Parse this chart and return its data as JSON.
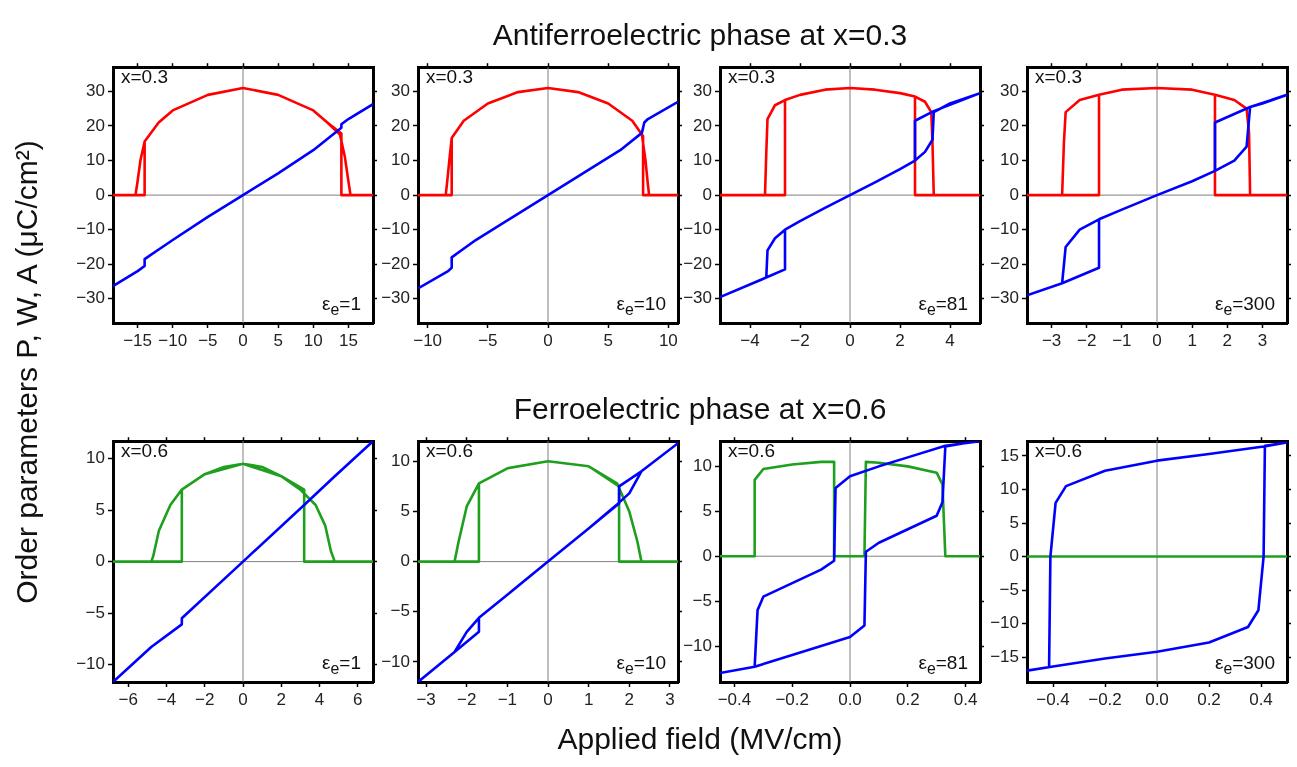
{
  "chart_data": [
    {
      "type": "line",
      "ylabel": "Order parameters P, W, A (μC/cm²)",
      "annotations": [
        "x=0.3",
        "ε$_{e}$=1"
      ],
      "xlim": [
        -18.5,
        18.5
      ],
      "ylim": [
        -37,
        37
      ],
      "xticks": [
        -15,
        -10,
        -5,
        0,
        5,
        10,
        15
      ],
      "yticks": [
        -30,
        -20,
        -10,
        0,
        10,
        20,
        30
      ],
      "ref_lines": [
        {
          "axis": "x",
          "value": 0,
          "color": "#808080"
        },
        {
          "axis": "y",
          "value": 0,
          "color": "#808080"
        }
      ],
      "series": [
        {
          "color": "#0000ff",
          "x": [
            -18.5,
            -15,
            -14,
            -14,
            -10,
            -5,
            0,
            5,
            10,
            14,
            14,
            15,
            18.5
          ],
          "values": [
            -26.3,
            -22,
            -20.5,
            -18.5,
            -13,
            -6.3,
            0,
            6.3,
            13,
            19.5,
            20.5,
            22,
            26.3
          ]
        },
        {
          "color": "#ff0000",
          "x": [
            -18.5,
            -14,
            -14,
            -12,
            -10,
            -5,
            0,
            5,
            10,
            12,
            13.8,
            14.5,
            15,
            15.3,
            18.5,
            14,
            14,
            12,
            10,
            5,
            0,
            -5,
            -10,
            -12,
            -14,
            -14.6,
            -15,
            -15.3
          ],
          "values": [
            0,
            0,
            15.5,
            21,
            24.5,
            29,
            31,
            29,
            24.5,
            21,
            17.5,
            11,
            4,
            0,
            0,
            0,
            17.8,
            21,
            24.5,
            29,
            31,
            29,
            24.5,
            21,
            15.5,
            10,
            4,
            0
          ]
        }
      ]
    },
    {
      "type": "line",
      "annotations": [
        "x=0.3",
        "ε$_{e}$=10"
      ],
      "xlim": [
        -10.8,
        10.8
      ],
      "ylim": [
        -37,
        37
      ],
      "xticks": [
        -10,
        -5,
        0,
        5,
        10
      ],
      "yticks": [
        -30,
        -20,
        -10,
        0,
        10,
        20,
        30
      ],
      "ref_lines": [
        {
          "axis": "x",
          "value": 0,
          "color": "#808080"
        },
        {
          "axis": "y",
          "value": 0,
          "color": "#808080"
        }
      ],
      "series": [
        {
          "color": "#0000ff",
          "x": [
            -10.8,
            -8.3,
            -8,
            -8,
            -6,
            -3,
            0,
            3,
            6,
            7.8,
            8,
            8.3,
            10.8
          ],
          "values": [
            -27,
            -22,
            -21,
            -18,
            -13,
            -6.5,
            0,
            6.5,
            13,
            18,
            21,
            22,
            27
          ]
        },
        {
          "color": "#ff0000",
          "x": [
            -10.8,
            -8,
            -8,
            -7,
            -5,
            -2.5,
            0,
            2.5,
            5,
            7,
            7.8,
            8.1,
            8.3,
            8.4,
            10.8,
            7.9,
            7.9,
            7,
            5,
            2.5,
            0,
            -2.5,
            -5,
            -7,
            -8,
            -8.2,
            -8.4,
            -8.5
          ],
          "values": [
            0,
            0,
            16.5,
            21.5,
            26.5,
            29.8,
            31,
            29.8,
            26.5,
            21.5,
            17.5,
            10,
            3,
            0,
            0,
            0,
            17,
            21.5,
            26.5,
            29.8,
            31,
            29.8,
            26.5,
            21.5,
            16.5,
            10,
            3,
            0
          ]
        }
      ]
    },
    {
      "type": "line",
      "title": "Antiferroelectric phase at x=0.3",
      "annotations": [
        "x=0.3",
        "ε$_{e}$=81"
      ],
      "xlim": [
        -5.2,
        5.2
      ],
      "ylim": [
        -37,
        37
      ],
      "xticks": [
        -4,
        -2,
        0,
        2,
        4
      ],
      "yticks": [
        -30,
        -20,
        -10,
        0,
        10,
        20,
        30
      ],
      "ref_lines": [
        {
          "axis": "x",
          "value": 0,
          "color": "#808080"
        },
        {
          "axis": "y",
          "value": 0,
          "color": "#808080"
        }
      ],
      "series": [
        {
          "color": "#0000ff",
          "x": [
            -5.2,
            -3.4,
            -2.6,
            -2.6,
            -2,
            -1,
            0,
            1,
            2,
            2.6,
            3,
            3.3,
            3.35,
            4,
            5.2,
            3.35,
            2.6,
            2.6,
            2,
            1,
            0,
            -1,
            -2,
            -2.6,
            -3,
            -3.3,
            -3.35
          ],
          "values": [
            -29.5,
            -24,
            -21.5,
            -10,
            -7.5,
            -3.7,
            0,
            3.7,
            7.5,
            10,
            12.5,
            16,
            24,
            26.5,
            29.5,
            24.3,
            21.5,
            10,
            7.5,
            3.7,
            0,
            -3.7,
            -7.5,
            -10,
            -12.5,
            -16,
            -24
          ]
        },
        {
          "color": "#ff0000",
          "x": [
            -5.2,
            -2.6,
            -2.6,
            -2,
            -1,
            0,
            1,
            2,
            2.6,
            3,
            3.25,
            3.3,
            3.35,
            5.2,
            2.6,
            2.6,
            2,
            1,
            0,
            -1,
            -2,
            -2.6,
            -3,
            -3.3,
            -3.35,
            -3.4
          ],
          "values": [
            0,
            0,
            27.5,
            29,
            30.5,
            31,
            30.5,
            29.5,
            28.5,
            27,
            24,
            15,
            0,
            0,
            0,
            28.5,
            29.5,
            30.5,
            31,
            30.5,
            29,
            27.5,
            26,
            22,
            12,
            0
          ]
        }
      ]
    },
    {
      "type": "line",
      "annotations": [
        "x=0.3",
        "ε$_{e}$=300"
      ],
      "xlim": [
        -3.7,
        3.7
      ],
      "ylim": [
        -37,
        37
      ],
      "xticks": [
        -3,
        -2,
        -1,
        0,
        1,
        2,
        3
      ],
      "yticks": [
        -30,
        -20,
        -10,
        0,
        10,
        20,
        30
      ],
      "ref_lines": [
        {
          "axis": "x",
          "value": 0,
          "color": "#808080"
        },
        {
          "axis": "y",
          "value": 0,
          "color": "#808080"
        }
      ],
      "series": [
        {
          "color": "#0000ff",
          "x": [
            -3.7,
            -2.7,
            -1.65,
            -1.65,
            -1,
            0,
            1,
            1.65,
            2.2,
            2.55,
            2.65,
            3,
            3.7,
            2.65,
            1.65,
            1.65,
            1,
            0,
            -1,
            -1.65,
            -2.2,
            -2.6,
            -2.7
          ],
          "values": [
            -29,
            -25.5,
            -21,
            -7,
            -4.2,
            0,
            4,
            7,
            10,
            14,
            25.5,
            26.5,
            29,
            25.5,
            21,
            7,
            4,
            0,
            -4.2,
            -7,
            -10,
            -15,
            -25.5
          ]
        },
        {
          "color": "#ff0000",
          "x": [
            -3.7,
            -1.65,
            -1.65,
            -1,
            0,
            1,
            1.65,
            2.2,
            2.55,
            2.62,
            2.65,
            3.7,
            1.65,
            1.65,
            1,
            0,
            -1,
            -1.65,
            -2.2,
            -2.6,
            -2.65,
            -2.7
          ],
          "values": [
            0,
            0,
            29,
            30.5,
            31,
            30.5,
            29,
            27.5,
            25,
            18,
            0,
            0,
            0,
            29,
            30.5,
            31,
            30.5,
            29,
            27.5,
            24,
            15,
            0
          ]
        }
      ]
    },
    {
      "type": "line",
      "annotations": [
        "x=0.6",
        "ε$_{e}$=1"
      ],
      "xlim": [
        -6.8,
        6.8
      ],
      "ylim": [
        -11.7,
        11.7
      ],
      "xticks": [
        -6,
        -4,
        -2,
        0,
        2,
        4,
        6
      ],
      "yticks": [
        -10,
        -5,
        0,
        5,
        10
      ],
      "ref_lines": [
        {
          "axis": "x",
          "value": 0,
          "color": "#808080"
        },
        {
          "axis": "y",
          "value": 0,
          "color": "#808080"
        }
      ],
      "series": [
        {
          "color": "#0000ff",
          "x": [
            -6.8,
            -4.8,
            -3.2,
            -3.2,
            0,
            3.2,
            4.8,
            6.8
          ],
          "values": [
            -11.7,
            -8.3,
            -6.1,
            -5.5,
            0,
            5.5,
            8.3,
            11.7
          ]
        },
        {
          "color": "#1ea01e",
          "x": [
            -6.8,
            -3.2,
            -3.2,
            -2,
            -1,
            0,
            1,
            2,
            3,
            3.8,
            4.3,
            4.6,
            4.8,
            6.8,
            3.2,
            3.2,
            2,
            0,
            -2,
            -3.2,
            -3.8,
            -4.4,
            -4.7,
            -4.8
          ],
          "values": [
            0,
            0,
            7,
            8.5,
            9.2,
            9.5,
            9.2,
            8.3,
            7,
            5.5,
            3.5,
            1,
            0,
            0,
            0,
            7,
            8.3,
            9.5,
            8.5,
            7,
            5.5,
            3,
            0.5,
            0
          ]
        }
      ]
    },
    {
      "type": "line",
      "annotations": [
        "x=0.6",
        "ε$_{e}$=10"
      ],
      "xlim": [
        -3.2,
        3.2
      ],
      "ylim": [
        -12,
        12
      ],
      "xticks": [
        -3,
        -2,
        -1,
        0,
        1,
        2,
        3
      ],
      "yticks": [
        -10,
        -5,
        0,
        5,
        10
      ],
      "ref_lines": [
        {
          "axis": "x",
          "value": 0,
          "color": "#808080"
        },
        {
          "axis": "y",
          "value": 0,
          "color": "#808080"
        }
      ],
      "series": [
        {
          "color": "#0000ff",
          "x": [
            -3.2,
            -2.3,
            -1.7,
            -1.7,
            -1,
            0,
            1,
            1.7,
            2,
            2.3,
            3.2,
            2.3,
            1.75,
            1.75,
            1,
            0,
            -1,
            -1.7,
            -2,
            -2.3
          ],
          "values": [
            -12,
            -9,
            -7,
            -5.6,
            -3.3,
            0,
            3.3,
            5.7,
            6.8,
            9,
            11.8,
            9,
            7.5,
            5.8,
            3.3,
            0,
            -3.3,
            -5.6,
            -7,
            -9
          ]
        },
        {
          "color": "#1ea01e",
          "x": [
            -3.2,
            -1.7,
            -1.7,
            -1,
            0,
            1,
            1.7,
            2,
            2.2,
            2.3,
            3.2,
            1.75,
            1.75,
            1,
            0,
            -1,
            -1.7,
            -2,
            -2.2,
            -2.3
          ],
          "values": [
            0,
            0,
            7.8,
            9.3,
            10,
            9.5,
            7.8,
            5,
            2,
            0,
            0,
            0,
            7.5,
            9.5,
            10,
            9.3,
            7.8,
            5.5,
            2,
            0
          ]
        }
      ]
    },
    {
      "type": "line",
      "title": "Ferroelectric phase at x=0.6",
      "xlabel": "Applied field (MV/cm)",
      "annotations": [
        "x=0.6",
        "ε$_{e}$=81"
      ],
      "xlim": [
        -0.45,
        0.45
      ],
      "ylim": [
        -14,
        12.8
      ],
      "xticks": [
        -0.4,
        -0.2,
        {
          "value": 0,
          "label": "0.0"
        },
        0.2,
        0.4
      ],
      "yticks": [
        -10,
        -5,
        0,
        5,
        10
      ],
      "ref_lines": [
        {
          "axis": "x",
          "value": 0,
          "color": "#808080"
        },
        {
          "axis": "y",
          "value": 0,
          "color": "#808080"
        }
      ],
      "series": [
        {
          "color": "#0000ff",
          "x": [
            -0.45,
            -0.33,
            -0.2,
            0,
            0.05,
            0.055,
            0.1,
            0.2,
            0.3,
            0.32,
            0.33,
            0.4,
            0.45,
            0.33,
            0.2,
            0.1,
            0,
            -0.05,
            -0.055,
            -0.1,
            -0.2,
            -0.3,
            -0.32,
            -0.33
          ],
          "values": [
            -13,
            -12.3,
            -11,
            -9,
            -7.7,
            0.5,
            1.5,
            3,
            4.5,
            6,
            12.2,
            12.6,
            12.8,
            12.3,
            11,
            10,
            8.9,
            7.6,
            -0.5,
            -1.5,
            -3,
            -4.5,
            -6,
            -12.3
          ]
        },
        {
          "color": "#1ea01e",
          "x": [
            -0.45,
            -0.33,
            -0.33,
            -0.3,
            -0.2,
            -0.1,
            -0.055,
            -0.055,
            0.05,
            0.055,
            0.1,
            0.2,
            0.3,
            0.32,
            0.33,
            0.45
          ],
          "values": [
            0,
            0,
            8.5,
            9.7,
            10.2,
            10.5,
            10.5,
            0,
            0,
            10.5,
            10.4,
            10,
            9.3,
            8,
            0,
            0
          ]
        }
      ]
    },
    {
      "type": "line",
      "annotations": [
        "x=0.6",
        "ε$_{e}$=300"
      ],
      "xlim": [
        -0.5,
        0.5
      ],
      "ylim": [
        -18.7,
        17.2
      ],
      "xticks": [
        -0.4,
        -0.2,
        {
          "value": 0,
          "label": "0.0"
        },
        0.2,
        0.4
      ],
      "yticks": [
        -15,
        -10,
        -5,
        0,
        5,
        10,
        15
      ],
      "ref_lines": [
        {
          "axis": "x",
          "value": 0,
          "color": "#808080"
        }
      ],
      "series": [
        {
          "color": "#0000ff",
          "x": [
            -0.5,
            -0.4,
            -0.2,
            0,
            0.2,
            0.35,
            0.39,
            0.41,
            0.415,
            0.5,
            0.41,
            0.2,
            0,
            -0.2,
            -0.35,
            -0.39,
            -0.41,
            -0.415
          ],
          "values": [
            -17,
            -16.4,
            -15.2,
            -14.2,
            -12.8,
            -10.5,
            -8,
            0,
            16.5,
            17,
            16.4,
            15.3,
            14.3,
            12.8,
            10.5,
            8,
            0,
            -16.4
          ]
        },
        {
          "color": "#1ea01e",
          "x": [
            -0.5,
            0.5
          ],
          "values": [
            0,
            0
          ]
        }
      ]
    }
  ]
}
